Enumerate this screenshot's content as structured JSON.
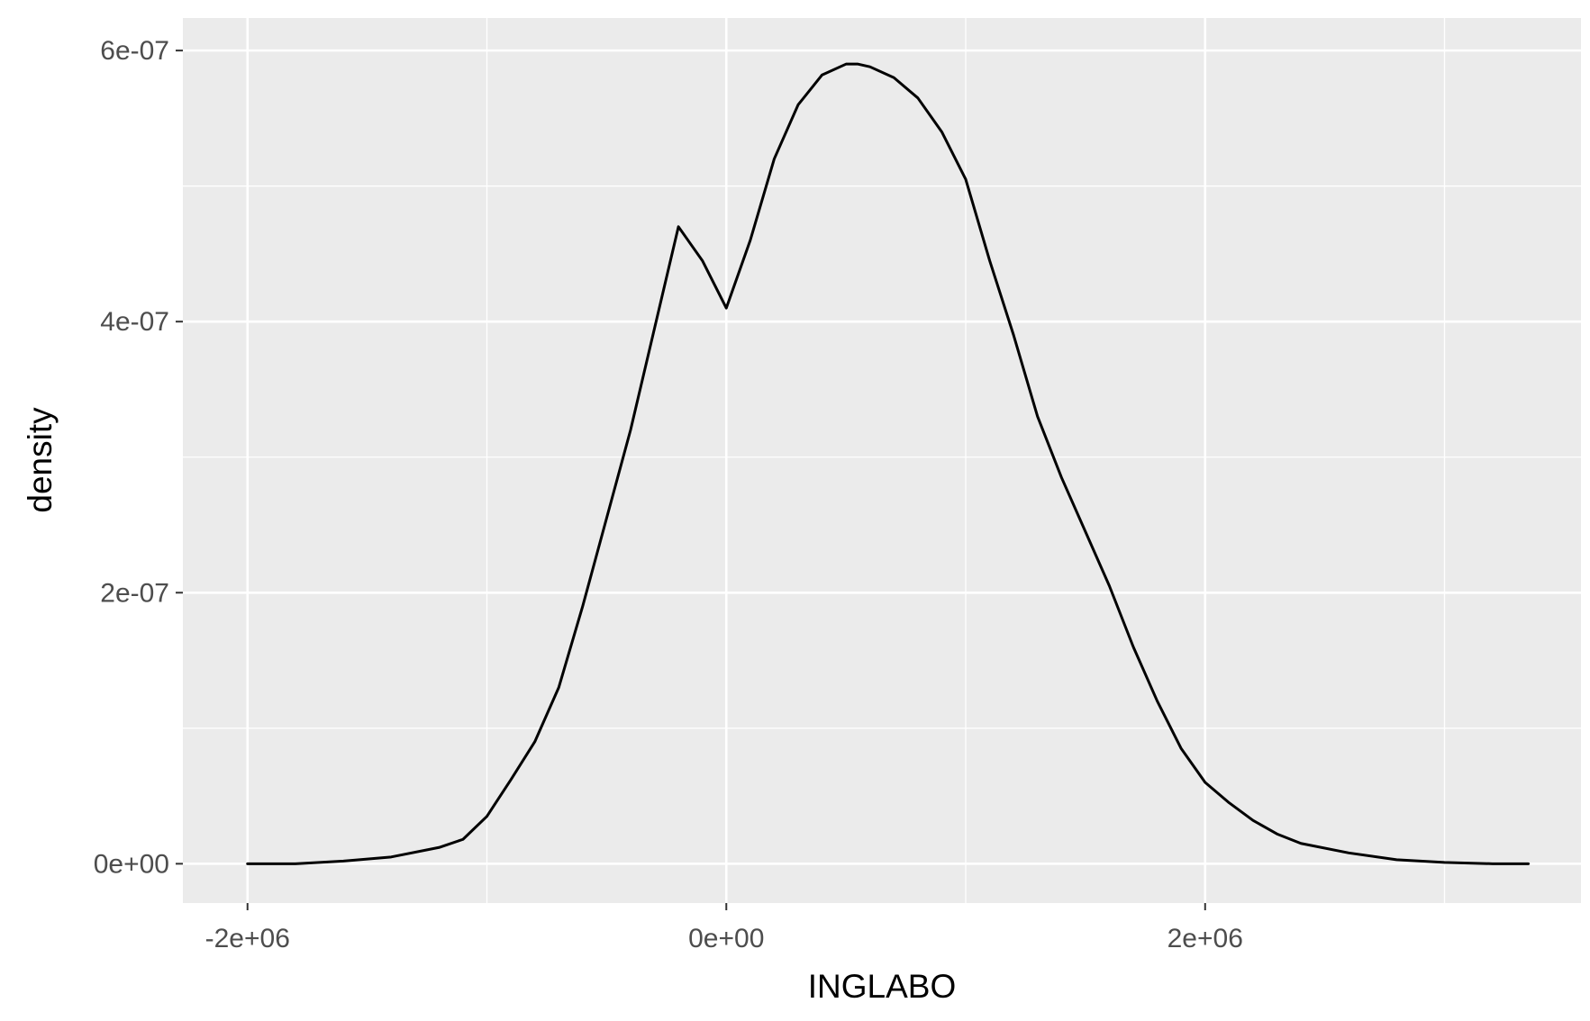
{
  "chart_data": {
    "type": "line",
    "title": "",
    "xlabel": "INGLABO",
    "ylabel": "density",
    "xlim": [
      -2270000,
      3570000
    ],
    "ylim": [
      -2.9e-08,
      6.24e-07
    ],
    "x_ticks": [
      {
        "value": -2000000,
        "label": "-2e+06"
      },
      {
        "value": 0,
        "label": "0e+00"
      },
      {
        "value": 2000000,
        "label": "2e+06"
      }
    ],
    "x_minor_ticks": [
      -1000000,
      1000000,
      3000000
    ],
    "y_ticks": [
      {
        "value": 0,
        "label": "0e+00"
      },
      {
        "value": 2e-07,
        "label": "2e-07"
      },
      {
        "value": 4e-07,
        "label": "4e-07"
      },
      {
        "value": 6e-07,
        "label": "6e-07"
      }
    ],
    "y_minor_ticks": [
      1e-07,
      3e-07,
      5e-07
    ],
    "grid": true,
    "colors": {
      "panel": "#ebebeb",
      "grid": "#ffffff",
      "line": "#000000",
      "tick_text": "#4d4d4d"
    },
    "series": [
      {
        "x": [
          -2000000,
          -1800000,
          -1600000,
          -1400000,
          -1200000,
          -1100000,
          -1000000,
          -900000,
          -800000,
          -700000,
          -600000,
          -500000,
          -400000,
          -300000,
          -200000,
          -100000,
          0,
          100000,
          200000,
          300000,
          400000,
          500000,
          550000,
          600000,
          700000,
          800000,
          900000,
          1000000,
          1100000,
          1200000,
          1300000,
          1400000,
          1500000,
          1600000,
          1700000,
          1800000,
          1900000,
          2000000,
          2100000,
          2200000,
          2300000,
          2400000,
          2600000,
          2800000,
          3000000,
          3200000,
          3350000
        ],
        "y": [
          0,
          0,
          2e-09,
          5e-09,
          1.2e-08,
          1.8e-08,
          3.5e-08,
          6.2e-08,
          9e-08,
          1.3e-07,
          1.9e-07,
          2.55e-07,
          3.2e-07,
          3.95e-07,
          4.7e-07,
          4.45e-07,
          4.1e-07,
          4.6e-07,
          5.2e-07,
          5.6e-07,
          5.82e-07,
          5.9e-07,
          5.9e-07,
          5.88e-07,
          5.8e-07,
          5.65e-07,
          5.4e-07,
          5.05e-07,
          4.45e-07,
          3.9e-07,
          3.3e-07,
          2.85e-07,
          2.45e-07,
          2.05e-07,
          1.6e-07,
          1.2e-07,
          8.5e-08,
          6e-08,
          4.5e-08,
          3.2e-08,
          2.2e-08,
          1.5e-08,
          8e-09,
          3e-09,
          1e-09,
          0,
          0
        ]
      }
    ]
  }
}
